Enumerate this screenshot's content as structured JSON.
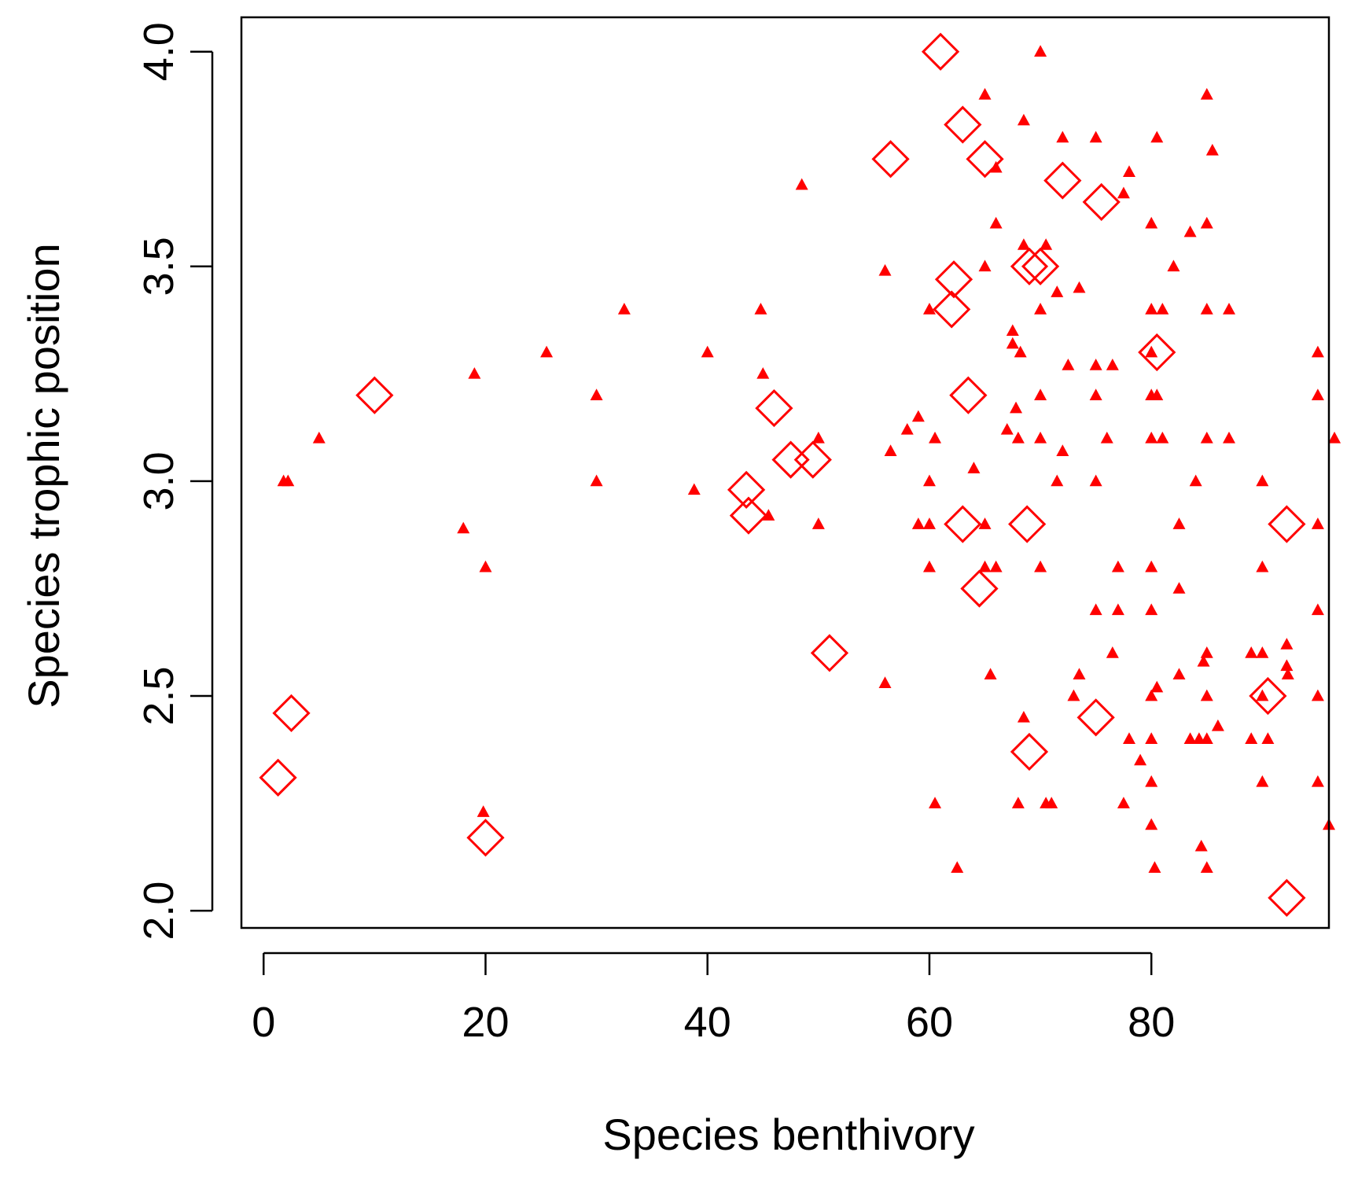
{
  "chart_data": {
    "type": "scatter",
    "title": "",
    "xlabel": "Species benthivory",
    "ylabel": "Species trophic position",
    "xlim": [
      -2,
      96
    ],
    "ylim": [
      1.96,
      4.08
    ],
    "xticks": [
      0,
      20,
      40,
      60,
      80
    ],
    "yticks": [
      2.0,
      2.5,
      3.0,
      3.5,
      4.0
    ],
    "xtick_labels": [
      "0",
      "20",
      "40",
      "60",
      "80"
    ],
    "ytick_labels": [
      "2.0",
      "2.5",
      "3.0",
      "3.5",
      "4.0"
    ],
    "grid": false,
    "colors": {
      "points": "#ff0000",
      "axis": "#000000",
      "background": "#ffffff"
    },
    "series": [
      {
        "name": "open diamonds",
        "marker": "diamond-open",
        "points": [
          [
            61,
            4.0
          ],
          [
            63,
            3.83
          ],
          [
            56.5,
            3.75
          ],
          [
            65,
            3.75
          ],
          [
            72,
            3.7
          ],
          [
            75.5,
            3.65
          ],
          [
            69,
            3.5
          ],
          [
            70,
            3.5
          ],
          [
            62.2,
            3.47
          ],
          [
            62,
            3.4
          ],
          [
            80.5,
            3.3
          ],
          [
            10,
            3.2
          ],
          [
            63.5,
            3.2
          ],
          [
            46,
            3.17
          ],
          [
            47.5,
            3.05
          ],
          [
            49.5,
            3.05
          ],
          [
            43.5,
            2.98
          ],
          [
            43.7,
            2.92
          ],
          [
            63,
            2.9
          ],
          [
            68.8,
            2.9
          ],
          [
            92.2,
            2.9
          ],
          [
            64.5,
            2.75
          ],
          [
            51,
            2.6
          ],
          [
            90.5,
            2.5
          ],
          [
            2.5,
            2.46
          ],
          [
            75,
            2.45
          ],
          [
            69,
            2.37
          ],
          [
            1.3,
            2.31
          ],
          [
            20,
            2.17
          ],
          [
            92.2,
            2.03
          ]
        ]
      },
      {
        "name": "filled triangles",
        "marker": "triangle-filled",
        "points": [
          [
            70,
            4.0
          ],
          [
            65,
            3.9
          ],
          [
            85,
            3.9
          ],
          [
            68.5,
            3.84
          ],
          [
            72,
            3.8
          ],
          [
            75,
            3.8
          ],
          [
            80.5,
            3.8
          ],
          [
            85.5,
            3.77
          ],
          [
            66,
            3.73
          ],
          [
            78,
            3.72
          ],
          [
            48.5,
            3.69
          ],
          [
            77.5,
            3.67
          ],
          [
            66,
            3.6
          ],
          [
            80,
            3.6
          ],
          [
            85,
            3.6
          ],
          [
            83.5,
            3.58
          ],
          [
            68.5,
            3.55
          ],
          [
            70.5,
            3.55
          ],
          [
            65,
            3.5
          ],
          [
            56,
            3.49
          ],
          [
            82,
            3.5
          ],
          [
            73.5,
            3.45
          ],
          [
            71.5,
            3.44
          ],
          [
            32.5,
            3.4
          ],
          [
            44.8,
            3.4
          ],
          [
            60,
            3.4
          ],
          [
            70,
            3.4
          ],
          [
            80,
            3.4
          ],
          [
            81,
            3.4
          ],
          [
            85,
            3.4
          ],
          [
            87,
            3.4
          ],
          [
            67.5,
            3.35
          ],
          [
            67.5,
            3.32
          ],
          [
            25.5,
            3.3
          ],
          [
            40,
            3.3
          ],
          [
            68.2,
            3.3
          ],
          [
            80,
            3.3
          ],
          [
            95,
            3.3
          ],
          [
            72.5,
            3.27
          ],
          [
            75,
            3.27
          ],
          [
            76.5,
            3.27
          ],
          [
            19,
            3.25
          ],
          [
            45,
            3.25
          ],
          [
            30,
            3.2
          ],
          [
            70,
            3.2
          ],
          [
            75,
            3.2
          ],
          [
            80,
            3.2
          ],
          [
            95,
            3.2
          ],
          [
            80.5,
            3.2
          ],
          [
            67.8,
            3.17
          ],
          [
            59,
            3.15
          ],
          [
            58,
            3.12
          ],
          [
            67,
            3.12
          ],
          [
            5,
            3.1
          ],
          [
            50,
            3.1
          ],
          [
            60.5,
            3.1
          ],
          [
            68,
            3.1
          ],
          [
            70,
            3.1
          ],
          [
            76,
            3.1
          ],
          [
            80,
            3.1
          ],
          [
            81,
            3.1
          ],
          [
            85,
            3.1
          ],
          [
            87,
            3.1
          ],
          [
            96.5,
            3.1
          ],
          [
            56.5,
            3.07
          ],
          [
            72,
            3.07
          ],
          [
            64,
            3.03
          ],
          [
            1.8,
            3.0
          ],
          [
            2.2,
            3.0
          ],
          [
            30,
            3.0
          ],
          [
            60,
            3.0
          ],
          [
            71.5,
            3.0
          ],
          [
            75,
            3.0
          ],
          [
            84,
            3.0
          ],
          [
            90,
            3.0
          ],
          [
            38.8,
            2.98
          ],
          [
            45.5,
            2.92
          ],
          [
            18,
            2.89
          ],
          [
            50,
            2.9
          ],
          [
            59,
            2.9
          ],
          [
            60,
            2.9
          ],
          [
            65,
            2.9
          ],
          [
            82.5,
            2.9
          ],
          [
            95,
            2.9
          ],
          [
            20,
            2.8
          ],
          [
            60,
            2.8
          ],
          [
            65,
            2.8
          ],
          [
            66,
            2.8
          ],
          [
            70,
            2.8
          ],
          [
            77,
            2.8
          ],
          [
            80,
            2.8
          ],
          [
            90,
            2.8
          ],
          [
            82.5,
            2.75
          ],
          [
            75,
            2.7
          ],
          [
            77,
            2.7
          ],
          [
            80,
            2.7
          ],
          [
            95,
            2.7
          ],
          [
            76.5,
            2.6
          ],
          [
            85,
            2.6
          ],
          [
            89,
            2.6
          ],
          [
            90,
            2.6
          ],
          [
            92.2,
            2.62
          ],
          [
            84.7,
            2.58
          ],
          [
            92.2,
            2.57
          ],
          [
            92.3,
            2.55
          ],
          [
            65.5,
            2.55
          ],
          [
            73.5,
            2.55
          ],
          [
            82.5,
            2.55
          ],
          [
            56,
            2.53
          ],
          [
            80.5,
            2.52
          ],
          [
            73,
            2.5
          ],
          [
            80,
            2.5
          ],
          [
            85,
            2.5
          ],
          [
            90,
            2.5
          ],
          [
            95,
            2.5
          ],
          [
            68.5,
            2.45
          ],
          [
            86,
            2.43
          ],
          [
            78,
            2.4
          ],
          [
            80,
            2.4
          ],
          [
            83.5,
            2.4
          ],
          [
            84.3,
            2.4
          ],
          [
            85,
            2.4
          ],
          [
            89,
            2.4
          ],
          [
            90.5,
            2.4
          ],
          [
            79,
            2.35
          ],
          [
            80,
            2.3
          ],
          [
            90,
            2.3
          ],
          [
            95,
            2.3
          ],
          [
            60.5,
            2.25
          ],
          [
            68,
            2.25
          ],
          [
            70.5,
            2.25
          ],
          [
            71,
            2.25
          ],
          [
            77.5,
            2.25
          ],
          [
            19.8,
            2.23
          ],
          [
            80,
            2.2
          ],
          [
            96,
            2.2
          ],
          [
            84.5,
            2.15
          ],
          [
            62.5,
            2.1
          ],
          [
            80.3,
            2.1
          ],
          [
            85,
            2.1
          ]
        ]
      }
    ]
  }
}
